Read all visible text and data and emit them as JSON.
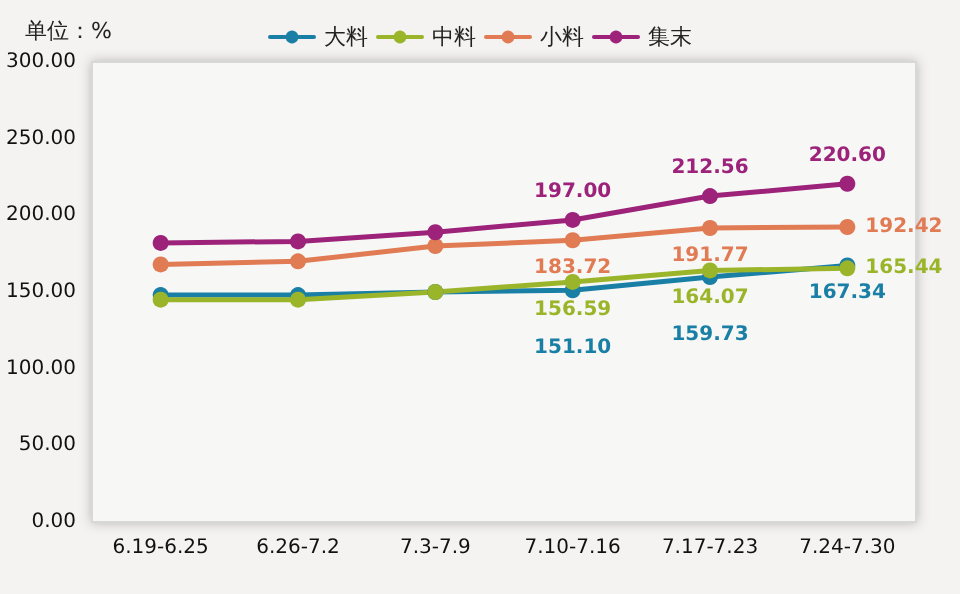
{
  "chart_data": {
    "type": "line",
    "ylabel": "单位：%",
    "categories": [
      "6.19-6.25",
      "6.26-7.2",
      "7.3-7.9",
      "7.10-7.16",
      "7.17-7.23",
      "7.24-7.30"
    ],
    "series": [
      {
        "name": "大料",
        "color": "#1a7fa5",
        "values": [
          148,
          148,
          150,
          151.1,
          159.73,
          167.34
        ],
        "value_labels": [
          null,
          null,
          null,
          "151.10",
          "159.73",
          "167.34"
        ]
      },
      {
        "name": "中料",
        "color": "#9bb52a",
        "values": [
          145,
          145,
          150,
          156.59,
          164.07,
          165.44
        ],
        "value_labels": [
          null,
          null,
          null,
          "156.59",
          "164.07",
          "165.44"
        ]
      },
      {
        "name": "小料",
        "color": "#e07b54",
        "values": [
          168,
          170,
          180,
          183.72,
          191.77,
          192.42
        ],
        "value_labels": [
          null,
          null,
          null,
          "183.72",
          "191.77",
          "192.42"
        ]
      },
      {
        "name": "集末",
        "color": "#9c2379",
        "values": [
          182,
          183,
          189,
          197.0,
          212.56,
          220.6
        ],
        "value_labels": [
          null,
          null,
          null,
          "197.00",
          "212.56",
          "220.60"
        ]
      }
    ],
    "ylim": [
      0,
      300
    ],
    "yticks": [
      {
        "value": 0,
        "label": "0.00"
      },
      {
        "value": 50,
        "label": "50.00"
      },
      {
        "value": 100,
        "label": "100.00"
      },
      {
        "value": 150,
        "label": "150.00"
      },
      {
        "value": 200,
        "label": "200.00"
      },
      {
        "value": 250,
        "label": "250.00"
      },
      {
        "value": 300,
        "label": "300.00"
      }
    ],
    "grid": false,
    "legend": "top",
    "marker": "circle",
    "line_style": "solid"
  }
}
